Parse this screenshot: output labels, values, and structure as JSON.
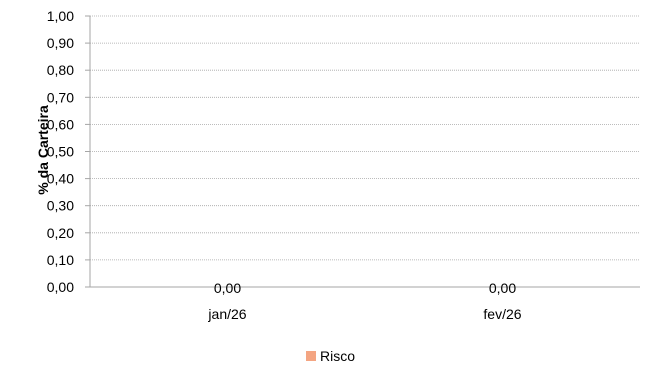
{
  "chart_data": {
    "type": "bar",
    "categories": [
      "jan/26",
      "fev/26"
    ],
    "series": [
      {
        "name": "Risco",
        "values": [
          0.0,
          0.0
        ],
        "color": "#F4A582"
      }
    ],
    "data_labels": [
      "0,00",
      "0,00"
    ],
    "ylabel": "% da Carteira",
    "xlabel": "",
    "ylim": [
      0,
      1.0
    ],
    "y_ticks": [
      "0,00",
      "0,10",
      "0,20",
      "0,30",
      "0,40",
      "0,50",
      "0,60",
      "0,70",
      "0,80",
      "0,90",
      "1,00"
    ],
    "grid": true,
    "gridline_color": "#A6A6A6",
    "axis_color": "#A6A6A6",
    "legend_position": "bottom",
    "legend": [
      {
        "label": "Risco",
        "color": "#F4A582"
      }
    ]
  }
}
